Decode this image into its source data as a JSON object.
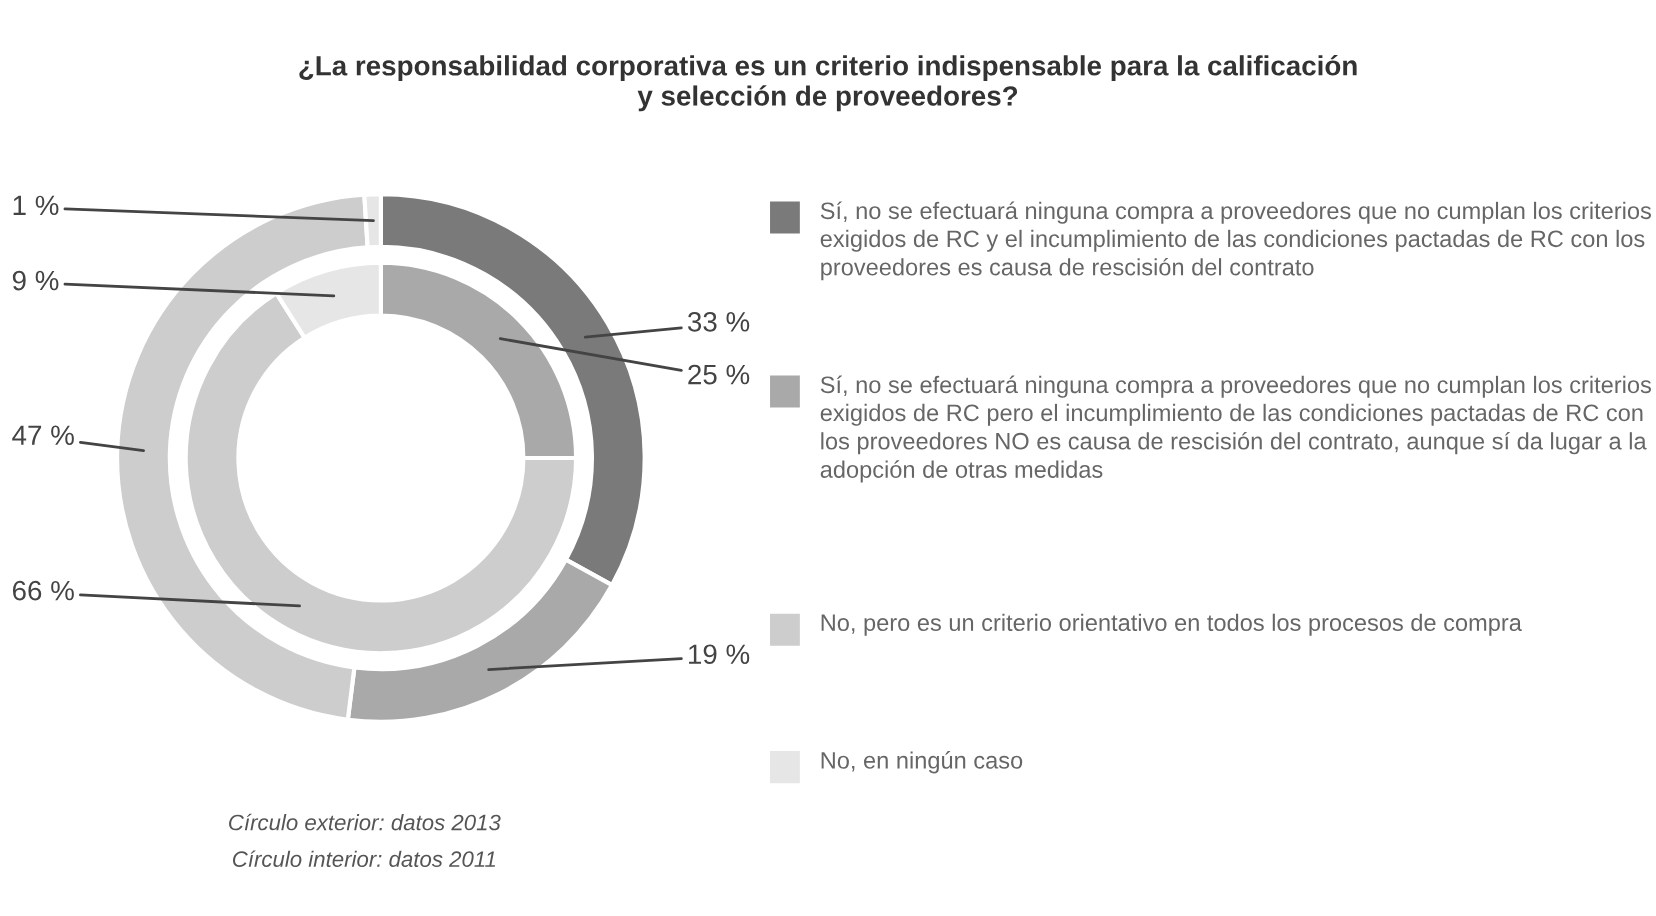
{
  "chart_data": {
    "type": "donut",
    "title": "¿La responsabilidad corporativa es un criterio indispensable para la calificación\ny selección de proveedores?",
    "categories": [
      "Sí, no se efectuará ninguna compra a proveedores que no cumplan los criterios exigidos de RC y el incumplimiento de las condiciones pactadas de RC con los proveedores es causa de rescisión del contrato",
      "Sí, no se efectuará ninguna compra a proveedores que no cumplan los criterios exigidos de RC pero el incumplimiento de las condiciones pactadas de RC con los proveedores NO es causa de rescisión del contrato, aunque sí da lugar a la adopción de otras medidas",
      "No, pero es un criterio orientativo en todos los procesos de compra",
      "No, en ningún caso"
    ],
    "colors": [
      "#7a7a7a",
      "#a9a9a9",
      "#cdcdcd",
      "#e6e6e6"
    ],
    "series": [
      {
        "values": [
          33,
          19,
          47,
          1
        ],
        "value_labels": [
          "33 %",
          "19 %",
          "47 %",
          "1 %"
        ]
      },
      {
        "values": [
          0,
          25,
          66,
          9
        ],
        "value_labels": [
          null,
          "25 %",
          "66 %",
          "9 %"
        ]
      }
    ],
    "legend": "right",
    "annotations": [
      "Círculo exterior: datos 2013",
      "Círculo interior: datos 2011"
    ]
  }
}
